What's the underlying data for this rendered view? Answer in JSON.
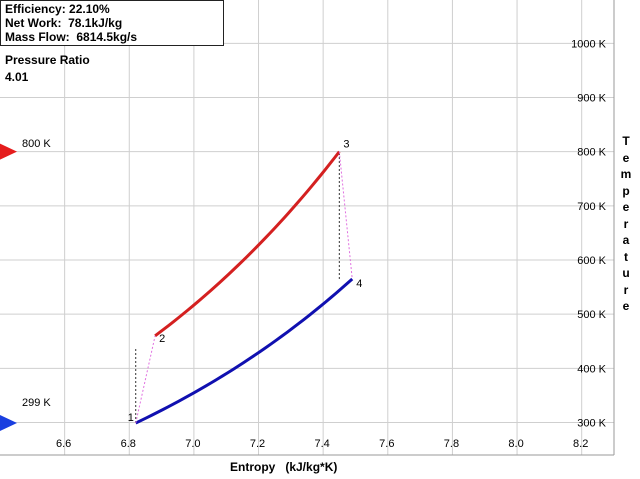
{
  "info": {
    "efficiency": "Efficiency: 22.10%",
    "net_work": "Net Work:  78.1kJ/kg",
    "mass_flow": "Mass Flow:  6814.5kg/s"
  },
  "pressure_ratio": {
    "label": "Pressure Ratio",
    "value": "4.01"
  },
  "markers": {
    "high": {
      "label": "800 K",
      "color": "#e51c1c"
    },
    "low": {
      "label": "299 K",
      "color": "#1a3fe0"
    }
  },
  "axis": {
    "x_label": "Entropy   (kJ/kg*K)",
    "y_label": "Temperature"
  },
  "chart_data": {
    "type": "line",
    "xlim": [
      6.4,
      8.3
    ],
    "ylim": [
      240,
      1080
    ],
    "x_ticks": [
      "6.6",
      "6.8",
      "7.0",
      "7.2",
      "7.4",
      "7.6",
      "7.8",
      "8.0",
      "8.2"
    ],
    "x_tick_values": [
      6.6,
      6.8,
      7.0,
      7.2,
      7.4,
      7.6,
      7.8,
      8.0,
      8.2
    ],
    "y_ticks": [
      "300 K",
      "400 K",
      "500 K",
      "600 K",
      "700 K",
      "800 K",
      "900 K",
      "1000 K"
    ],
    "y_tick_values": [
      300,
      400,
      500,
      600,
      700,
      800,
      900,
      1000
    ],
    "grid": true,
    "points": [
      {
        "label": "1",
        "s": 6.82,
        "T": 299
      },
      {
        "label": "2",
        "s": 6.88,
        "T": 460
      },
      {
        "label": "3",
        "s": 7.45,
        "T": 800
      },
      {
        "label": "4",
        "s": 7.49,
        "T": 565
      }
    ],
    "series": [
      {
        "key": "heat_addition",
        "from": "2",
        "to": "3",
        "color": "#d42020"
      },
      {
        "key": "heat_rejection",
        "from": "1",
        "to": "4",
        "color": "#1010b0"
      },
      {
        "key": "compression",
        "from": "1",
        "to": "2",
        "color": "#e070e0"
      },
      {
        "key": "expansion",
        "from": "3",
        "to": "4",
        "color": "#e070e0"
      }
    ],
    "isentropic_refs": [
      {
        "s": 6.82,
        "T_from": 299,
        "T_to": 437
      },
      {
        "s": 7.45,
        "T_from": 565,
        "T_to": 800
      }
    ]
  }
}
